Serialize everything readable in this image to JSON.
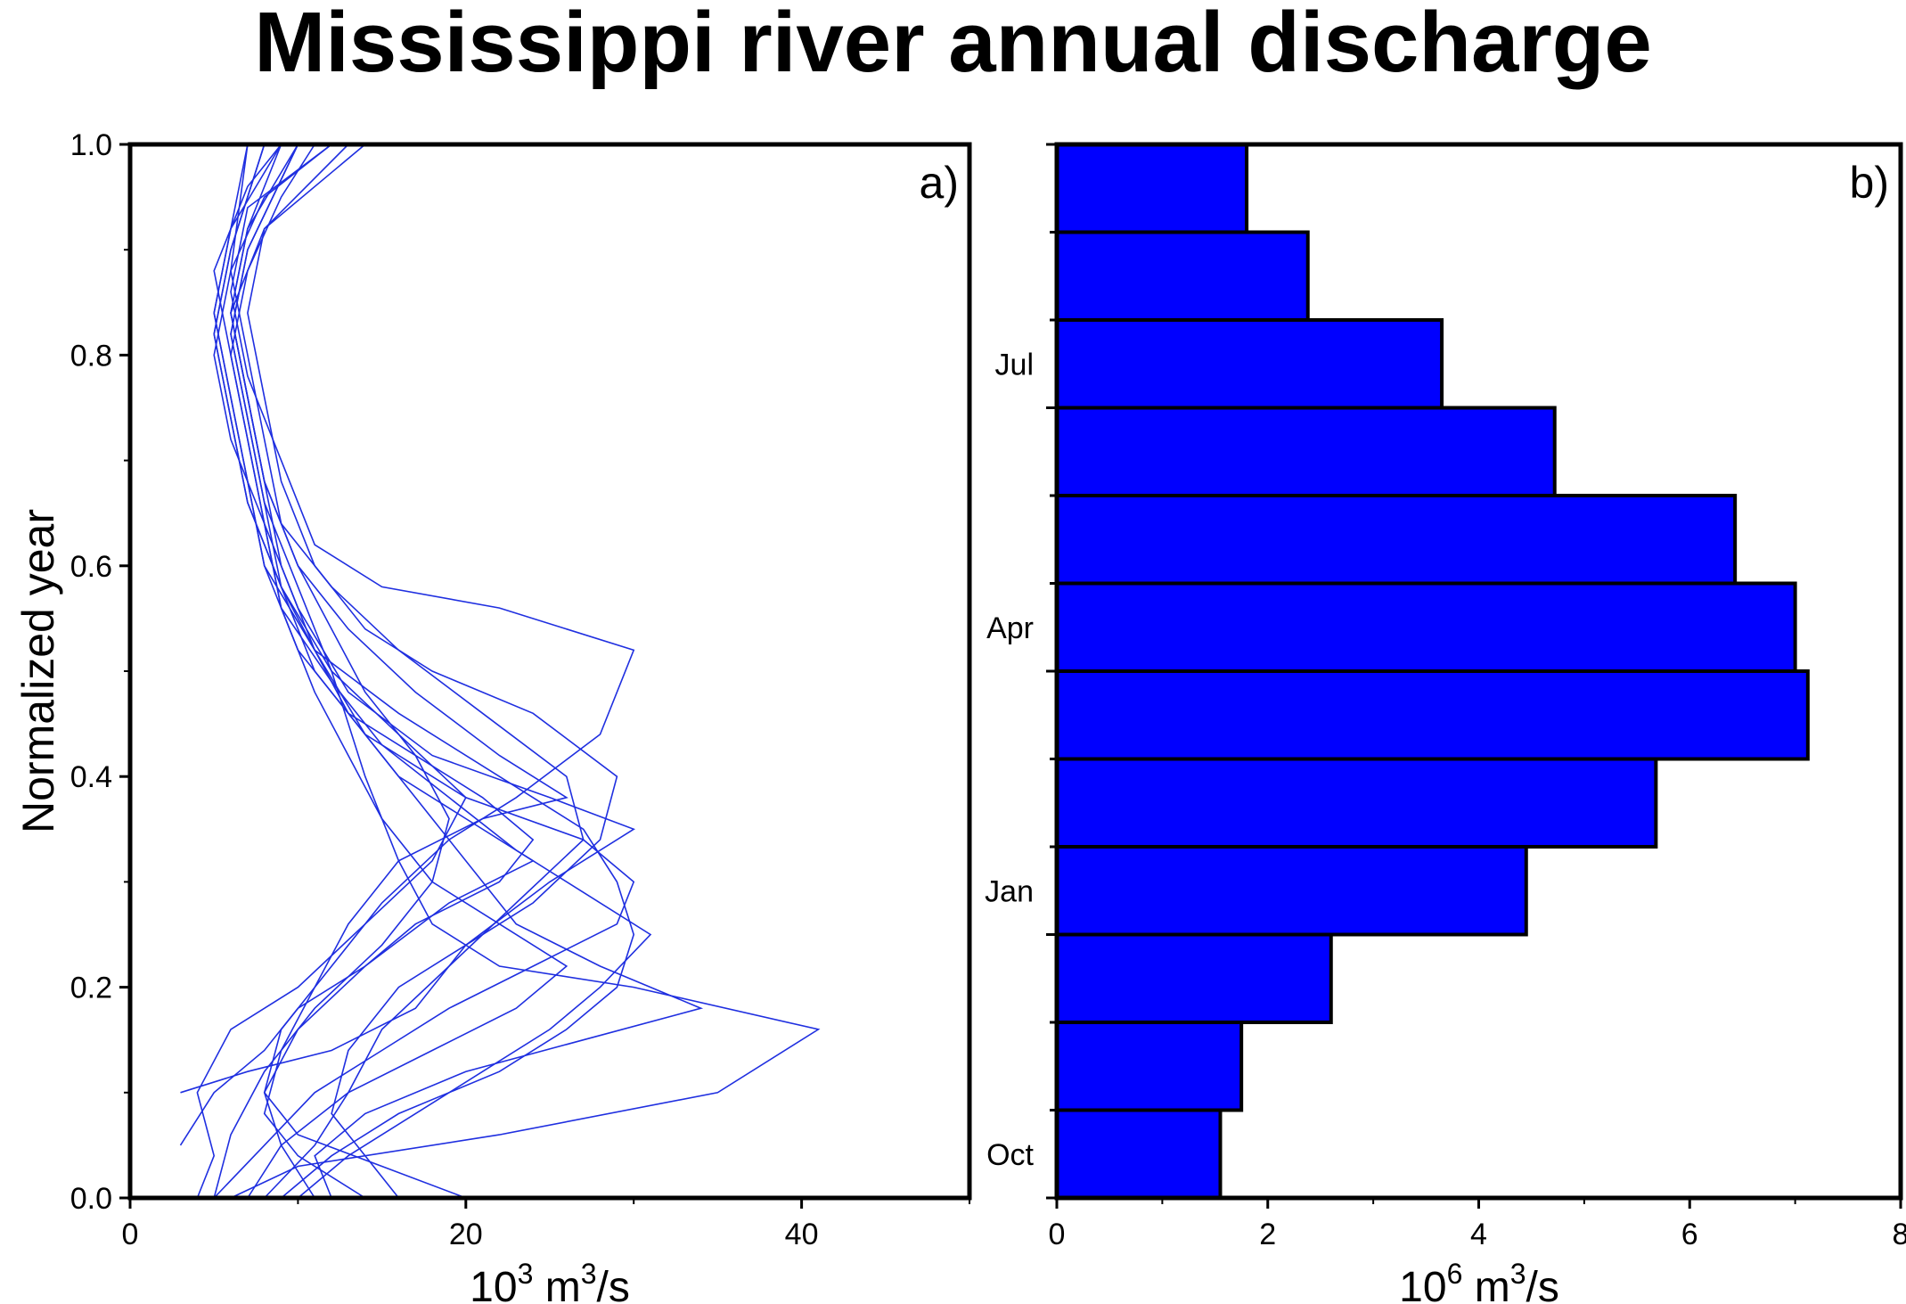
{
  "title": "Mississippi river annual discharge",
  "chart_data": [
    {
      "type": "line",
      "panel_label": "a)",
      "ylabel": "Normalized year",
      "xlabel_base": "10",
      "xlabel_exp": "3",
      "xlabel_unit": " m",
      "xlabel_unit_exp": "3",
      "xlabel_unit_tail": "/s",
      "xlim": [
        0,
        50
      ],
      "ylim": [
        0,
        1
      ],
      "x_ticks": [
        0,
        20,
        40
      ],
      "x_tick_labels": [
        "0",
        "20",
        "40"
      ],
      "y_ticks": [
        0,
        0.2,
        0.4,
        0.6,
        0.8,
        1.0
      ],
      "y_tick_labels": [
        "0.0",
        "0.2",
        "0.4",
        "0.6",
        "0.8",
        "1.0"
      ],
      "series_color": "#1f2fe0",
      "series": [
        {
          "values": [
            [
              4,
              0
            ],
            [
              5,
              0.04
            ],
            [
              4,
              0.1
            ],
            [
              6,
              0.16
            ],
            [
              10,
              0.2
            ],
            [
              14,
              0.26
            ],
            [
              18,
              0.32
            ],
            [
              20,
              0.38
            ],
            [
              16,
              0.44
            ],
            [
              12,
              0.5
            ],
            [
              9,
              0.58
            ],
            [
              7,
              0.66
            ],
            [
              6,
              0.74
            ],
            [
              5,
              0.82
            ],
            [
              6,
              0.9
            ],
            [
              8,
              1.0
            ]
          ]
        },
        {
          "values": [
            [
              6,
              0
            ],
            [
              10,
              0.03
            ],
            [
              22,
              0.06
            ],
            [
              35,
              0.1
            ],
            [
              41,
              0.16
            ],
            [
              30,
              0.2
            ],
            [
              22,
              0.22
            ],
            [
              18,
              0.26
            ],
            [
              16,
              0.32
            ],
            [
              14,
              0.4
            ],
            [
              12,
              0.5
            ],
            [
              10,
              0.58
            ],
            [
              8,
              0.66
            ],
            [
              7,
              0.74
            ],
            [
              6,
              0.82
            ],
            [
              7,
              0.9
            ],
            [
              10,
              1.0
            ]
          ]
        },
        {
          "values": [
            [
              9,
              0
            ],
            [
              12,
              0.04
            ],
            [
              16,
              0.08
            ],
            [
              22,
              0.12
            ],
            [
              26,
              0.16
            ],
            [
              29,
              0.2
            ],
            [
              30,
              0.25
            ],
            [
              29,
              0.3
            ],
            [
              27,
              0.35
            ],
            [
              22,
              0.4
            ],
            [
              16,
              0.46
            ],
            [
              11,
              0.52
            ],
            [
              8,
              0.6
            ],
            [
              7,
              0.68
            ],
            [
              6,
              0.76
            ],
            [
              5,
              0.84
            ],
            [
              6,
              0.92
            ],
            [
              9,
              1.0
            ]
          ]
        },
        {
          "values": [
            [
              3,
              0.1
            ],
            [
              7,
              0.12
            ],
            [
              12,
              0.14
            ],
            [
              17,
              0.18
            ],
            [
              20,
              0.24
            ],
            [
              25,
              0.3
            ],
            [
              30,
              0.35
            ],
            [
              25,
              0.38
            ],
            [
              18,
              0.42
            ],
            [
              13,
              0.48
            ],
            [
              10,
              0.56
            ],
            [
              8,
              0.64
            ],
            [
              6,
              0.72
            ],
            [
              5,
              0.8
            ],
            [
              6,
              0.88
            ],
            [
              7,
              1.0
            ]
          ]
        },
        {
          "values": [
            [
              20,
              0
            ],
            [
              15,
              0.03
            ],
            [
              10,
              0.06
            ],
            [
              8,
              0.1
            ],
            [
              9,
              0.16
            ],
            [
              12,
              0.22
            ],
            [
              15,
              0.28
            ],
            [
              19,
              0.34
            ],
            [
              23,
              0.38
            ],
            [
              28,
              0.44
            ],
            [
              30,
              0.52
            ],
            [
              22,
              0.56
            ],
            [
              15,
              0.58
            ],
            [
              11,
              0.62
            ],
            [
              9,
              0.7
            ],
            [
              7,
              0.78
            ],
            [
              6,
              0.86
            ],
            [
              7,
              0.94
            ],
            [
              12,
              1.0
            ]
          ]
        },
        {
          "values": [
            [
              5,
              0
            ],
            [
              8,
              0.05
            ],
            [
              11,
              0.1
            ],
            [
              15,
              0.14
            ],
            [
              19,
              0.18
            ],
            [
              24,
              0.22
            ],
            [
              29,
              0.26
            ],
            [
              30,
              0.3
            ],
            [
              27,
              0.34
            ],
            [
              20,
              0.38
            ],
            [
              14,
              0.44
            ],
            [
              11,
              0.52
            ],
            [
              9,
              0.6
            ],
            [
              8,
              0.68
            ],
            [
              7,
              0.76
            ],
            [
              6,
              0.84
            ],
            [
              7,
              0.92
            ],
            [
              10,
              1.0
            ]
          ]
        },
        {
          "values": [
            [
              12,
              0
            ],
            [
              11,
              0.04
            ],
            [
              14,
              0.08
            ],
            [
              20,
              0.12
            ],
            [
              27,
              0.15
            ],
            [
              34,
              0.18
            ],
            [
              28,
              0.22
            ],
            [
              23,
              0.26
            ],
            [
              21,
              0.3
            ],
            [
              18,
              0.36
            ],
            [
              15,
              0.42
            ],
            [
              11,
              0.5
            ],
            [
              9,
              0.58
            ],
            [
              7,
              0.66
            ],
            [
              6,
              0.74
            ],
            [
              5,
              0.82
            ],
            [
              6,
              0.9
            ],
            [
              8,
              1.0
            ]
          ]
        },
        {
          "values": [
            [
              3,
              0.05
            ],
            [
              5,
              0.1
            ],
            [
              8,
              0.14
            ],
            [
              10,
              0.18
            ],
            [
              14,
              0.22
            ],
            [
              17,
              0.26
            ],
            [
              22,
              0.3
            ],
            [
              24,
              0.34
            ],
            [
              21,
              0.38
            ],
            [
              17,
              0.42
            ],
            [
              13,
              0.46
            ],
            [
              10,
              0.52
            ],
            [
              8,
              0.6
            ],
            [
              7,
              0.68
            ],
            [
              6,
              0.76
            ],
            [
              5,
              0.84
            ],
            [
              6,
              0.92
            ],
            [
              7,
              1.0
            ]
          ]
        },
        {
          "values": [
            [
              14,
              0
            ],
            [
              10,
              0.04
            ],
            [
              8,
              0.08
            ],
            [
              9,
              0.14
            ],
            [
              11,
              0.2
            ],
            [
              13,
              0.26
            ],
            [
              16,
              0.32
            ],
            [
              21,
              0.36
            ],
            [
              26,
              0.38
            ],
            [
              22,
              0.42
            ],
            [
              17,
              0.48
            ],
            [
              13,
              0.54
            ],
            [
              10,
              0.6
            ],
            [
              8,
              0.68
            ],
            [
              7,
              0.76
            ],
            [
              6,
              0.84
            ],
            [
              8,
              0.92
            ],
            [
              14,
              1.0
            ]
          ]
        },
        {
          "values": [
            [
              7,
              0
            ],
            [
              9,
              0.05
            ],
            [
              13,
              0.1
            ],
            [
              18,
              0.14
            ],
            [
              23,
              0.18
            ],
            [
              26,
              0.22
            ],
            [
              22,
              0.26
            ],
            [
              18,
              0.3
            ],
            [
              15,
              0.36
            ],
            [
              13,
              0.42
            ],
            [
              11,
              0.48
            ],
            [
              9,
              0.56
            ],
            [
              8,
              0.64
            ],
            [
              7,
              0.72
            ],
            [
              6,
              0.8
            ],
            [
              5,
              0.88
            ],
            [
              7,
              0.96
            ],
            [
              9,
              1.0
            ]
          ]
        },
        {
          "values": [
            [
              10,
              0
            ],
            [
              13,
              0.04
            ],
            [
              17,
              0.08
            ],
            [
              21,
              0.12
            ],
            [
              25,
              0.16
            ],
            [
              28,
              0.2
            ],
            [
              31,
              0.25
            ],
            [
              27,
              0.29
            ],
            [
              23,
              0.33
            ],
            [
              19,
              0.38
            ],
            [
              15,
              0.43
            ],
            [
              12,
              0.49
            ],
            [
              9,
              0.56
            ],
            [
              8,
              0.64
            ],
            [
              7,
              0.72
            ],
            [
              6,
              0.8
            ],
            [
              7,
              0.88
            ],
            [
              9,
              0.95
            ],
            [
              11,
              1.0
            ]
          ]
        },
        {
          "values": [
            [
              8,
              0
            ],
            [
              11,
              0.05
            ],
            [
              13,
              0.1
            ],
            [
              15,
              0.16
            ],
            [
              19,
              0.22
            ],
            [
              23,
              0.28
            ],
            [
              27,
              0.34
            ],
            [
              26,
              0.4
            ],
            [
              21,
              0.46
            ],
            [
              16,
              0.52
            ],
            [
              12,
              0.58
            ],
            [
              9,
              0.64
            ],
            [
              8,
              0.72
            ],
            [
              7,
              0.8
            ],
            [
              6,
              0.88
            ],
            [
              8,
              0.95
            ],
            [
              12,
              1.0
            ]
          ]
        },
        {
          "values": [
            [
              5,
              0
            ],
            [
              6,
              0.06
            ],
            [
              8,
              0.12
            ],
            [
              11,
              0.18
            ],
            [
              15,
              0.24
            ],
            [
              18,
              0.3
            ],
            [
              19,
              0.36
            ],
            [
              17,
              0.42
            ],
            [
              14,
              0.48
            ],
            [
              12,
              0.54
            ],
            [
              10,
              0.6
            ],
            [
              8,
              0.68
            ],
            [
              7,
              0.76
            ],
            [
              6,
              0.84
            ],
            [
              7,
              0.92
            ],
            [
              9,
              1.0
            ]
          ]
        },
        {
          "values": [
            [
              16,
              0
            ],
            [
              14,
              0.04
            ],
            [
              12,
              0.08
            ],
            [
              13,
              0.14
            ],
            [
              16,
              0.2
            ],
            [
              20,
              0.24
            ],
            [
              24,
              0.28
            ],
            [
              28,
              0.34
            ],
            [
              29,
              0.4
            ],
            [
              24,
              0.46
            ],
            [
              18,
              0.5
            ],
            [
              14,
              0.54
            ],
            [
              11,
              0.6
            ],
            [
              9,
              0.68
            ],
            [
              8,
              0.76
            ],
            [
              7,
              0.84
            ],
            [
              8,
              0.92
            ],
            [
              13,
              1.0
            ]
          ]
        },
        {
          "values": [
            [
              11,
              0
            ],
            [
              9,
              0.05
            ],
            [
              8,
              0.1
            ],
            [
              10,
              0.16
            ],
            [
              14,
              0.22
            ],
            [
              19,
              0.28
            ],
            [
              24,
              0.32
            ],
            [
              20,
              0.36
            ],
            [
              16,
              0.4
            ],
            [
              13,
              0.46
            ],
            [
              11,
              0.52
            ],
            [
              9,
              0.58
            ],
            [
              8,
              0.66
            ],
            [
              7,
              0.74
            ],
            [
              6,
              0.82
            ],
            [
              7,
              0.9
            ],
            [
              10,
              1.0
            ]
          ]
        }
      ]
    },
    {
      "type": "bar",
      "orientation": "horizontal",
      "panel_label": "b)",
      "xlabel_base": "10",
      "xlabel_exp": "6",
      "xlabel_unit": " m",
      "xlabel_unit_exp": "3",
      "xlabel_unit_tail": "/s",
      "xlim": [
        0,
        8
      ],
      "ylim": [
        0,
        12
      ],
      "x_ticks": [
        0,
        2,
        4,
        6,
        8
      ],
      "x_tick_labels": [
        "0",
        "2",
        "4",
        "6",
        "8"
      ],
      "month_labels": [
        {
          "label": "Oct",
          "at": 0.5
        },
        {
          "label": "Jan",
          "at": 3.5
        },
        {
          "label": "Apr",
          "at": 6.5
        },
        {
          "label": "Jul",
          "at": 9.5
        }
      ],
      "bar_color": "#0000ff",
      "values": [
        1.55,
        1.75,
        2.6,
        4.45,
        5.68,
        7.12,
        7.0,
        6.43,
        4.72,
        3.65,
        2.38,
        1.8
      ]
    }
  ]
}
